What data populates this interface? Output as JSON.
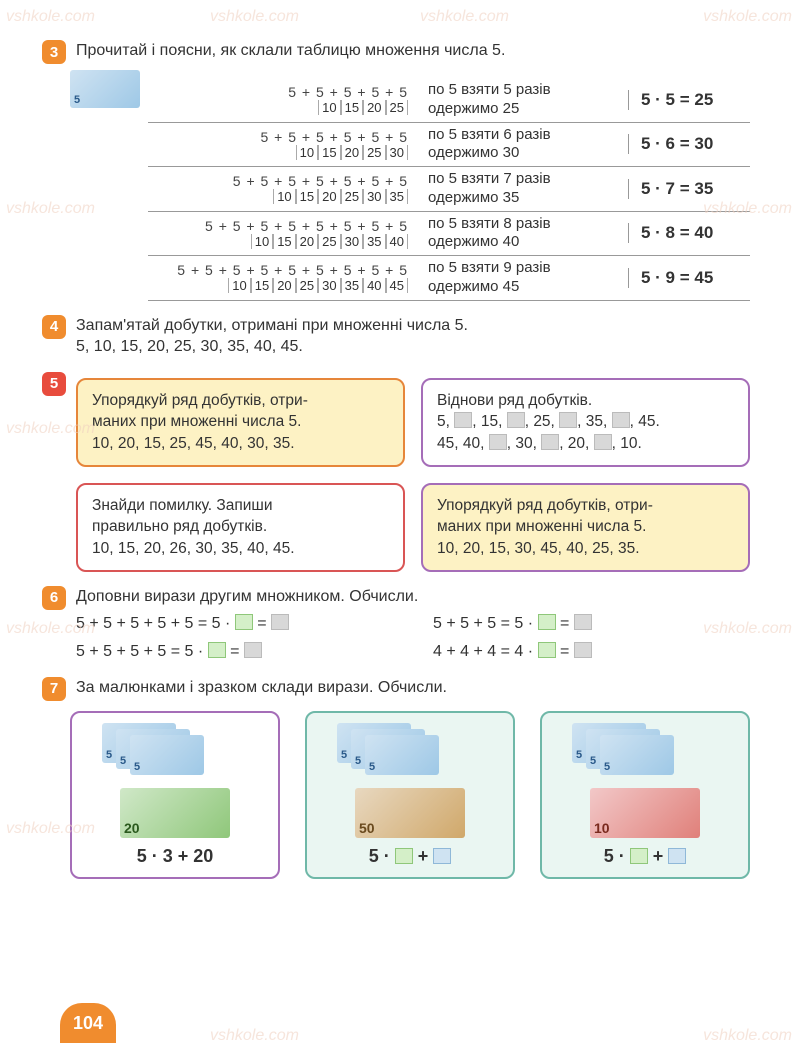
{
  "watermarks": [
    "vshkole.com",
    "vshkole.com",
    "vshkole.com",
    "vshkole.com",
    "vshkole.com",
    "vshkole.com",
    "vshkole.com",
    "vshkole.com",
    "vshkole.com",
    "vshkole.com",
    "vshkole.com",
    "vshkole.com"
  ],
  "page_number": "104",
  "task3": {
    "badge": "3",
    "text": "Прочитай і поясни, як склали таблицю множення числа 5.",
    "rows": [
      {
        "adds": "5 + 5 + 5 + 5 + 5",
        "sums": [
          "10",
          "15",
          "20",
          "25"
        ],
        "mid1": "по 5 взяти 5 разів",
        "mid2": "одержимо 25",
        "eq": "5 · 5 = 25"
      },
      {
        "adds": "5 + 5 + 5 + 5 + 5 + 5",
        "sums": [
          "10",
          "15",
          "20",
          "25",
          "30"
        ],
        "mid1": "по 5 взяти 6 разів",
        "mid2": "одержимо 30",
        "eq": "5 · 6 = 30"
      },
      {
        "adds": "5 + 5 + 5 + 5 + 5 + 5 + 5",
        "sums": [
          "10",
          "15",
          "20",
          "25",
          "30",
          "35"
        ],
        "mid1": "по 5 взяти 7 разів",
        "mid2": "одержимо 35",
        "eq": "5 · 7 = 35"
      },
      {
        "adds": "5 + 5 + 5 + 5 + 5 + 5 + 5 + 5",
        "sums": [
          "10",
          "15",
          "20",
          "25",
          "30",
          "35",
          "40"
        ],
        "mid1": "по 5 взяти 8 разів",
        "mid2": "одержимо 40",
        "eq": "5 · 8 = 40"
      },
      {
        "adds": "5 + 5 + 5 + 5 + 5 + 5 + 5 + 5 + 5",
        "sums": [
          "10",
          "15",
          "20",
          "25",
          "30",
          "35",
          "40",
          "45"
        ],
        "mid1": "по 5 взяти 9 разів",
        "mid2": "одержимо 45",
        "eq": "5 · 9 = 45"
      }
    ]
  },
  "task4": {
    "badge": "4",
    "text": "Запам'ятай добутки, отримані при множенні числа 5.",
    "line2": "5, 10, 15, 20, 25, 30, 35, 40, 45."
  },
  "task5": {
    "badge": "5",
    "cards": {
      "a": {
        "l1": "Упорядкуй ряд добутків, отри-",
        "l2": "маних при множенні числа 5.",
        "l3": "10, 20, 15, 25, 45, 40, 30, 35."
      },
      "b": {
        "l1": "Віднови ряд добутків.",
        "l2_parts": [
          "5, ",
          "▢",
          ", 15, ",
          "▢",
          ", 25, ",
          "▢",
          ", 35, ",
          "▢",
          ", 45."
        ],
        "l3_parts": [
          "45, 40, ",
          "▢",
          ", 30, ",
          "▢",
          ", 20, ",
          "▢",
          ", 10."
        ]
      },
      "c": {
        "l1": "Знайди помилку. Запиши",
        "l2": "правильно ряд добутків.",
        "l3": "10, 15, 20, 26, 30, 35, 40, 45."
      },
      "d": {
        "l1": "Упорядкуй ряд добутків, отри-",
        "l2": "маних при множенні числа 5.",
        "l3": "10, 20, 15, 30, 45, 40, 25, 35."
      }
    }
  },
  "task6": {
    "badge": "6",
    "text": "Доповни вирази другим множником. Обчисли.",
    "rows": [
      "5 + 5 + 5 + 5 + 5 = 5 · ",
      "5 + 5 + 5 = 5 · ",
      "5 + 5 + 5 + 5 = 5 · ",
      "4 + 4 + 4 = 4 · "
    ]
  },
  "task7": {
    "badge": "7",
    "text": "За малюнками і зразком склади вирази. Обчисли.",
    "cards": [
      {
        "formula": "5 · 3 + 20",
        "bill": "20",
        "billClass": "bn20"
      },
      {
        "formula_prefix": "5 · ",
        "bill": "50",
        "billClass": "bn50"
      },
      {
        "formula_prefix": "5 · ",
        "bill": "10",
        "billClass": "bn10"
      }
    ]
  }
}
